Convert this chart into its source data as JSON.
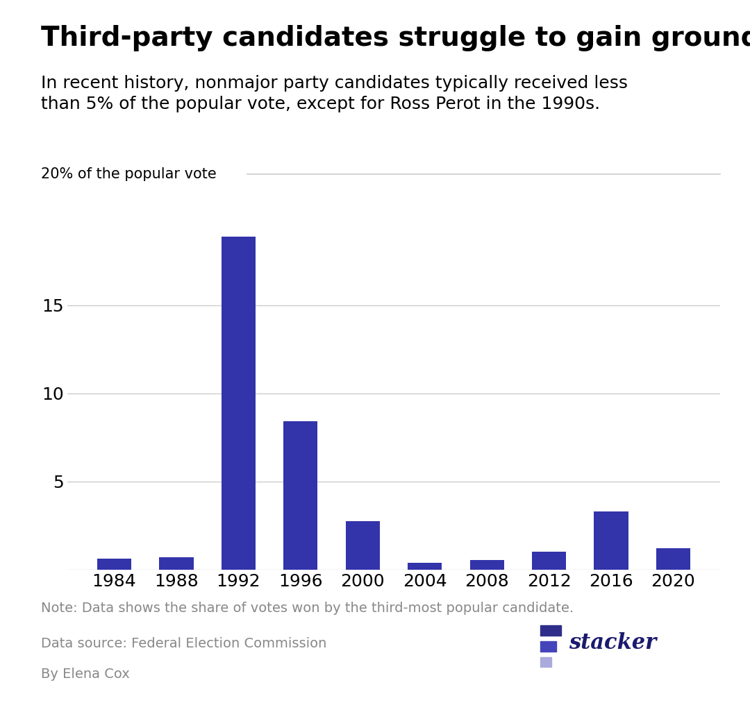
{
  "title": "Third-party candidates struggle to gain ground",
  "subtitle": "In recent history, nonmajor party candidates typically received less\nthan 5% of the popular vote, except for Ross Perot in the 1990s.",
  "ylabel": "20% of the popular vote",
  "categories": [
    "1984",
    "1988",
    "1992",
    "1996",
    "2000",
    "2004",
    "2008",
    "2012",
    "2016",
    "2020"
  ],
  "values": [
    0.62,
    0.72,
    18.9,
    8.4,
    2.74,
    0.38,
    0.56,
    1.0,
    3.3,
    1.2
  ],
  "bar_color": "#3333aa",
  "background_color": "#ffffff",
  "yticks": [
    5,
    10,
    15
  ],
  "ylim": [
    0,
    21
  ],
  "note": "Note: Data shows the share of votes won by the third-most popular candidate.",
  "source": "Data source: Federal Election Commission",
  "author": "By Elena Cox",
  "title_fontsize": 28,
  "subtitle_fontsize": 18,
  "tick_fontsize": 18,
  "ylabel_fontsize": 15,
  "note_fontsize": 14,
  "grid_color": "#cccccc",
  "text_color": "#000000",
  "note_color": "#888888",
  "stacker_color": "#1a1a6e",
  "stacker_bar1": "#3333aa",
  "stacker_bar2": "#6666cc",
  "stacker_bar3": "#aaaaee"
}
